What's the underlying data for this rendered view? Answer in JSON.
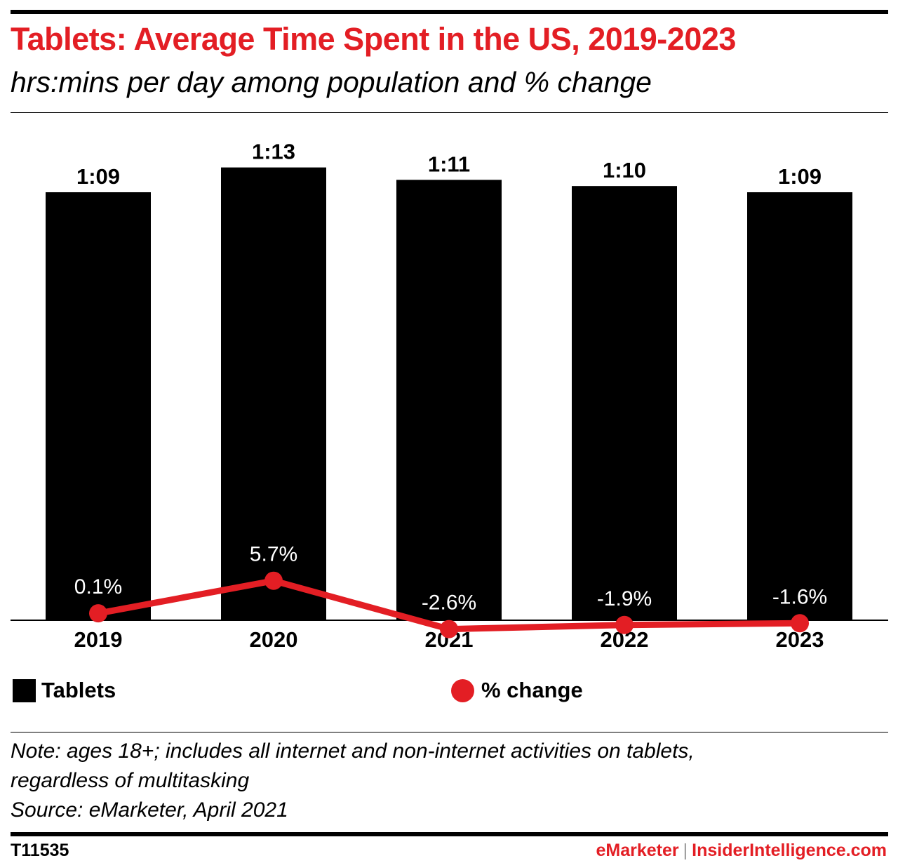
{
  "header": {
    "title": "Tablets: Average Time Spent in the US, 2019-2023",
    "subtitle": "hrs:mins per day among population and % change"
  },
  "legend": {
    "bar_label": "Tablets",
    "line_label": "% change"
  },
  "footer": {
    "note_line1": "Note: ages 18+; includes all internet and non-internet activities on tablets,",
    "note_line2": "regardless of multitasking",
    "source": "Source: eMarketer, April 2021",
    "chart_id": "T11535",
    "brand_primary": "eMarketer",
    "brand_separator": "|",
    "brand_secondary": "InsiderIntelligence.com"
  },
  "colors": {
    "bar": "#000000",
    "line": "#e31e24",
    "title": "#e31e24"
  },
  "chart_data": {
    "type": "bar",
    "categories": [
      "2019",
      "2020",
      "2021",
      "2022",
      "2023"
    ],
    "series": [
      {
        "name": "Tablets",
        "type": "bar",
        "values_minutes": [
          69,
          73,
          71,
          70,
          69
        ],
        "labels": [
          "1:09",
          "1:13",
          "1:11",
          "1:10",
          "1:09"
        ]
      },
      {
        "name": "% change",
        "type": "line",
        "values": [
          0.1,
          5.7,
          -2.6,
          -1.9,
          -1.6
        ],
        "labels": [
          "0.1%",
          "5.7%",
          "-2.6%",
          "-1.9%",
          "-1.6%"
        ]
      }
    ],
    "legend_position": "bottom",
    "grid": false
  }
}
